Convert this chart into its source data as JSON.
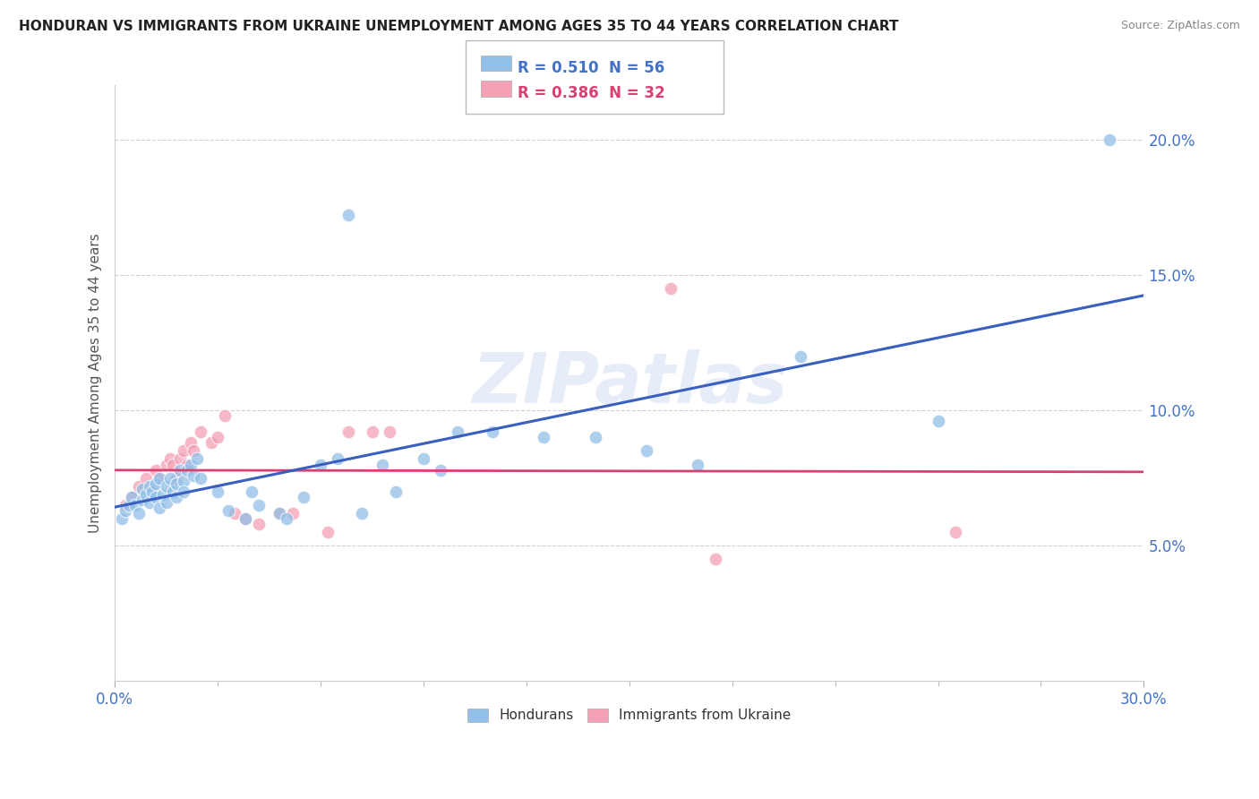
{
  "title": "HONDURAN VS IMMIGRANTS FROM UKRAINE UNEMPLOYMENT AMONG AGES 35 TO 44 YEARS CORRELATION CHART",
  "source": "Source: ZipAtlas.com",
  "ylabel": "Unemployment Among Ages 35 to 44 years",
  "xlim": [
    0.0,
    0.3
  ],
  "ylim": [
    0.0,
    0.22
  ],
  "honduran_color": "#92C0E8",
  "ukraine_color": "#F4A0B5",
  "honduran_line_color": "#3A5FBF",
  "ukraine_line_color": "#D94070",
  "legend_r1": "R = 0.510",
  "legend_n1": "N = 56",
  "legend_r2": "R = 0.386",
  "legend_n2": "N = 32",
  "watermark": "ZIPatlas",
  "honduran_scatter_x": [
    0.002,
    0.003,
    0.004,
    0.005,
    0.006,
    0.007,
    0.008,
    0.008,
    0.009,
    0.01,
    0.01,
    0.011,
    0.012,
    0.012,
    0.013,
    0.013,
    0.014,
    0.015,
    0.015,
    0.016,
    0.017,
    0.018,
    0.018,
    0.019,
    0.02,
    0.02,
    0.021,
    0.022,
    0.023,
    0.024,
    0.025,
    0.03,
    0.033,
    0.038,
    0.04,
    0.042,
    0.048,
    0.05,
    0.055,
    0.06,
    0.065,
    0.068,
    0.072,
    0.078,
    0.082,
    0.09,
    0.095,
    0.1,
    0.11,
    0.125,
    0.14,
    0.155,
    0.17,
    0.2,
    0.24,
    0.29
  ],
  "honduran_scatter_y": [
    0.06,
    0.063,
    0.065,
    0.068,
    0.065,
    0.062,
    0.067,
    0.071,
    0.069,
    0.072,
    0.066,
    0.07,
    0.068,
    0.073,
    0.075,
    0.064,
    0.069,
    0.072,
    0.066,
    0.075,
    0.07,
    0.073,
    0.068,
    0.078,
    0.074,
    0.07,
    0.078,
    0.08,
    0.076,
    0.082,
    0.075,
    0.07,
    0.063,
    0.06,
    0.07,
    0.065,
    0.062,
    0.06,
    0.068,
    0.08,
    0.082,
    0.172,
    0.062,
    0.08,
    0.07,
    0.082,
    0.078,
    0.092,
    0.092,
    0.09,
    0.09,
    0.085,
    0.08,
    0.12,
    0.096,
    0.2
  ],
  "ukraine_scatter_x": [
    0.003,
    0.005,
    0.007,
    0.009,
    0.011,
    0.012,
    0.013,
    0.015,
    0.016,
    0.017,
    0.018,
    0.019,
    0.02,
    0.021,
    0.022,
    0.023,
    0.025,
    0.028,
    0.03,
    0.032,
    0.035,
    0.038,
    0.042,
    0.048,
    0.052,
    0.062,
    0.068,
    0.075,
    0.08,
    0.162,
    0.175,
    0.245
  ],
  "ukraine_scatter_y": [
    0.065,
    0.068,
    0.072,
    0.075,
    0.072,
    0.078,
    0.075,
    0.08,
    0.082,
    0.08,
    0.075,
    0.082,
    0.085,
    0.08,
    0.088,
    0.085,
    0.092,
    0.088,
    0.09,
    0.098,
    0.062,
    0.06,
    0.058,
    0.062,
    0.062,
    0.055,
    0.092,
    0.092,
    0.092,
    0.145,
    0.045,
    0.055
  ]
}
